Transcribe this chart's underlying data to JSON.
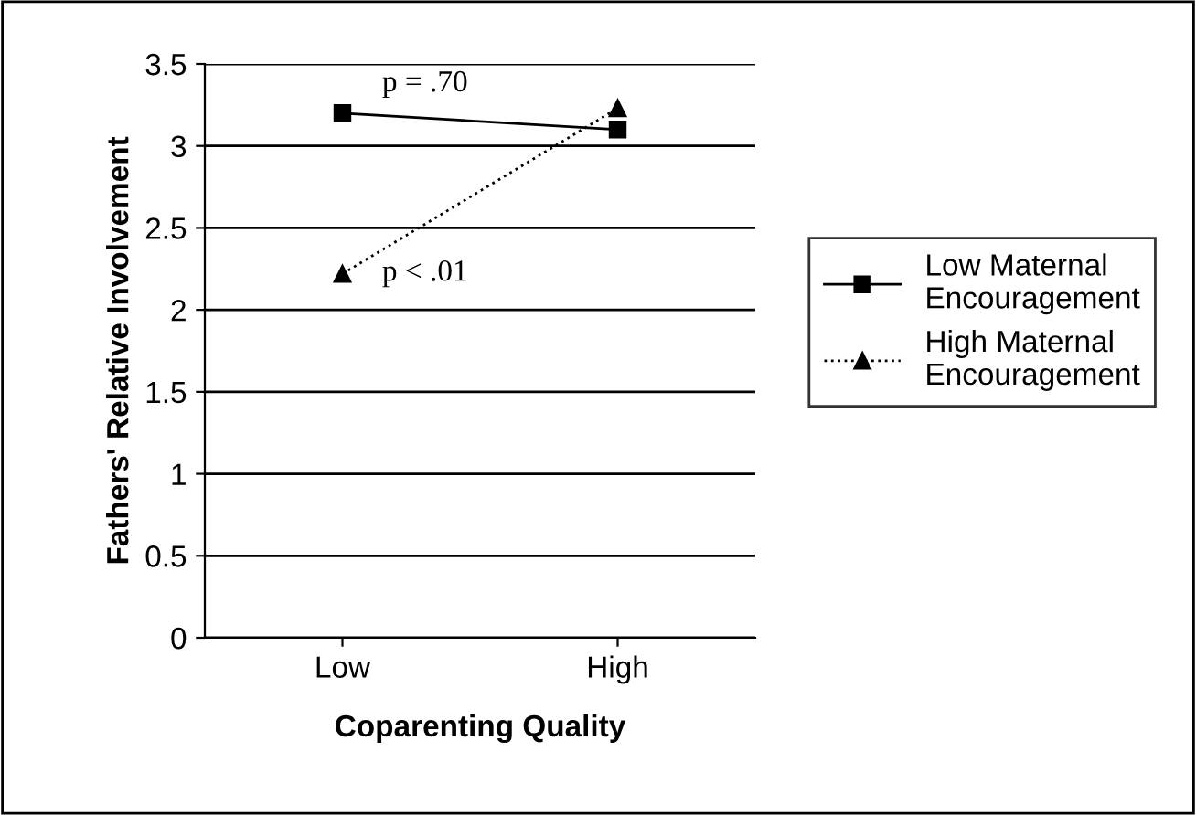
{
  "chart_data": {
    "type": "line",
    "xlabel": "Coparenting Quality",
    "ylabel": "Fathers' Relative Involvement",
    "categories": [
      "Low",
      "High"
    ],
    "series": [
      {
        "name": "Low Maternal Encouragement",
        "color": "#000000",
        "values": [
          3.2,
          3.1
        ],
        "marker": "square",
        "line_style": "solid"
      },
      {
        "name": "High Maternal Encouragement",
        "color": "#000000",
        "values": [
          2.22,
          3.23
        ],
        "marker": "triangle",
        "line_style": "dotted"
      }
    ],
    "ylim": [
      0,
      3.5
    ],
    "yticks": [
      0,
      0.5,
      1,
      1.5,
      2,
      2.5,
      3,
      3.5
    ],
    "grid": "y",
    "legend": "right",
    "annotations": [
      "p = .70",
      "p < .01"
    ]
  }
}
